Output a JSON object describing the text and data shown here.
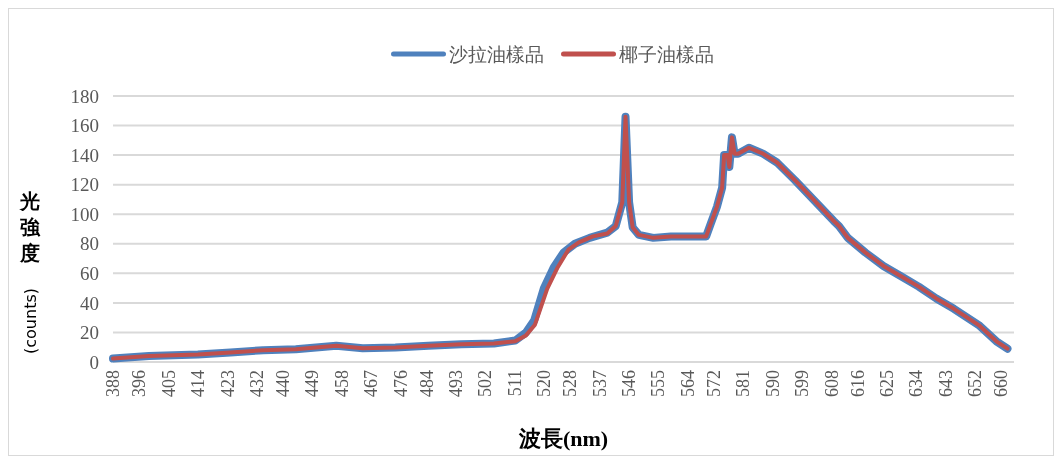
{
  "chart_data": {
    "type": "line",
    "xlabel": "波長(nm)",
    "ylabel": "光強度(counts)",
    "xlim": [
      388,
      664
    ],
    "ylim": [
      0,
      180
    ],
    "xticks": [
      388,
      396,
      405,
      414,
      423,
      432,
      440,
      449,
      458,
      467,
      476,
      484,
      493,
      502,
      511,
      520,
      528,
      537,
      546,
      555,
      564,
      572,
      581,
      590,
      599,
      608,
      616,
      625,
      634,
      643,
      652,
      660
    ],
    "yticks": [
      0,
      20,
      40,
      60,
      80,
      100,
      120,
      140,
      160,
      180
    ],
    "grid": "y",
    "legend": "top",
    "line_style": "solid",
    "marker": "none",
    "series": [
      {
        "name": "沙拉油樣品",
        "color": "#4f81bd",
        "x": [
          388,
          399,
          414,
          424,
          434,
          444,
          456.4,
          464.5,
          474.5,
          484.6,
          494.7,
          504.7,
          511.2,
          514.5,
          517,
          520,
          523,
          526,
          529.5,
          534,
          539.4,
          542,
          544,
          545,
          546.1,
          547.2,
          549.1,
          553.5,
          558.9,
          569.7,
          571,
          573,
          574.6,
          575.2,
          576.3,
          576.8,
          577.6,
          578.4,
          579.5,
          582.8,
          587.1,
          591.4,
          596.9,
          602.3,
          608.8,
          610.4,
          613.1,
          618.5,
          624,
          629.4,
          634.8,
          640.2,
          645.6,
          653.2,
          658.6,
          662
        ],
        "values": [
          2.3,
          4,
          5,
          6.4,
          8,
          8.6,
          11,
          9.3,
          9.8,
          11,
          12,
          12.5,
          14.5,
          20,
          28,
          50,
          64,
          74,
          80,
          84,
          87.5,
          92,
          108,
          166,
          108,
          91,
          86,
          84,
          85,
          85,
          93,
          105,
          118,
          140,
          140,
          132,
          152,
          141,
          141,
          145,
          141,
          135,
          123,
          110.5,
          95.4,
          92,
          84,
          74,
          65,
          58,
          51,
          43,
          36,
          25,
          14,
          9
        ]
      },
      {
        "name": "椰子油樣品",
        "color": "#c0504d",
        "x": [
          388,
          399,
          414,
          424,
          434,
          444,
          456.4,
          464.5,
          474.5,
          484.6,
          494.7,
          504.7,
          511.2,
          514.5,
          517.2,
          521,
          524.2,
          527.5,
          530.7,
          535,
          539.4,
          542,
          544,
          545,
          546.1,
          547.2,
          549.1,
          553.5,
          558.9,
          569.7,
          571,
          573,
          574.6,
          575.2,
          576.3,
          576.8,
          577.6,
          578.4,
          579.5,
          582.8,
          587.1,
          591.4,
          596.9,
          602.3,
          608.8,
          610.4,
          613.1,
          618.5,
          624,
          629.4,
          634.8,
          640.2,
          645.6,
          653.2,
          658.6,
          662
        ],
        "values": [
          2.3,
          4,
          5,
          6.4,
          8,
          8.6,
          11,
          9.3,
          9.8,
          11,
          12,
          12.5,
          14,
          18,
          25,
          49.5,
          64,
          76,
          81,
          85,
          87,
          92,
          108,
          166,
          108,
          91,
          86,
          84,
          85,
          85,
          93,
          105,
          118,
          140,
          140,
          132,
          152,
          141,
          141,
          145,
          141,
          135,
          123,
          110.5,
          95.4,
          92,
          84,
          74,
          65,
          58,
          51,
          43,
          36,
          25,
          14,
          9
        ]
      }
    ]
  }
}
